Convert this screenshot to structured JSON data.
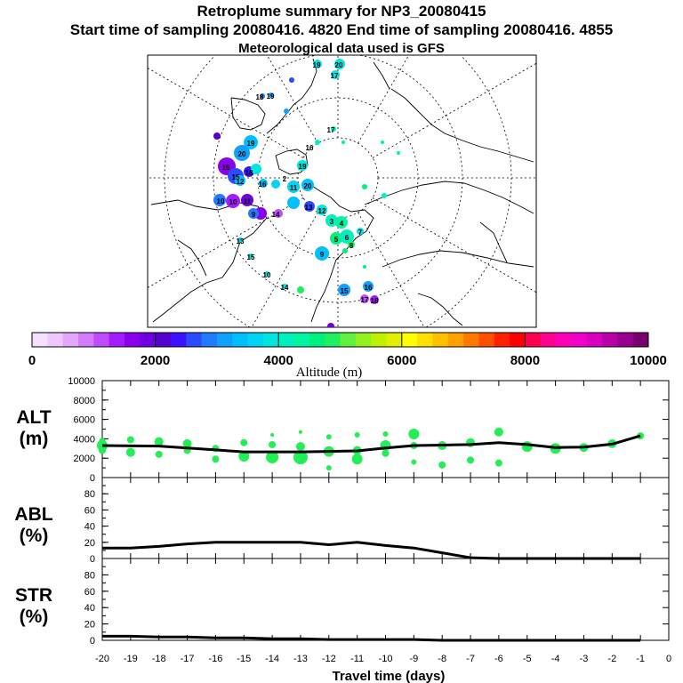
{
  "title": {
    "line1": "Retroplume summary for NP3_20080415",
    "line2": "Start time of sampling 20080416.  4820     End time of sampling 20080416.  4855",
    "line3": "Meteorological data used is GFS"
  },
  "colorbar": {
    "ticks": [
      "0",
      "2000",
      "4000",
      "6000",
      "8000",
      "10000"
    ],
    "label": "Altitude (m)",
    "colors": [
      "#f5e0ff",
      "#eec8ff",
      "#e2a6ff",
      "#d47cff",
      "#c04cff",
      "#a21cff",
      "#8a00ee",
      "#6d00dd",
      "#5600d0",
      "#3a10ff",
      "#2b4bff",
      "#1f7bff",
      "#12a0ff",
      "#00bfff",
      "#00d4f0",
      "#00e5e0",
      "#00f0c0",
      "#00f5a0",
      "#00f080",
      "#20f060",
      "#60f040",
      "#90f020",
      "#c0f000",
      "#e0f000",
      "#ffff00",
      "#ffe000",
      "#ffc000",
      "#ffa000",
      "#ff7800",
      "#ff5000",
      "#ff2000",
      "#ff0000",
      "#ff0050",
      "#ff0090",
      "#ff00b8",
      "#f000c8",
      "#d800c0",
      "#b800a8",
      "#980090",
      "#78006a"
    ]
  },
  "map": {
    "labels": [
      "19",
      "20",
      "17",
      "18",
      "19",
      "17",
      "19",
      "20",
      "19",
      "15",
      "18",
      "12",
      "16",
      "11",
      "10",
      "10",
      "9",
      "14",
      "13",
      "12",
      "11",
      "2",
      "3",
      "4",
      "5",
      "6",
      "7",
      "8",
      "9",
      "13",
      "15",
      "10",
      "14",
      "15",
      "16",
      "17",
      "18",
      "19",
      "20",
      "16"
    ]
  },
  "chart_data": [
    {
      "type": "scatter",
      "panel": "ALT",
      "ylabel_line1": "ALT",
      "ylabel_line2": "(m)",
      "ylim": [
        0,
        10000
      ],
      "yticks": [
        "0",
        "2000",
        "4000",
        "6000",
        "8000",
        "10000"
      ],
      "median_line": {
        "x": [
          -20,
          -18,
          -17,
          -16,
          -15,
          -14,
          -13,
          -12,
          -11,
          -10,
          -9,
          -8,
          -7,
          -6,
          -5,
          -4,
          -3,
          -2,
          -1
        ],
        "y": [
          3300,
          3250,
          3050,
          2850,
          2650,
          2650,
          2650,
          2700,
          2750,
          3050,
          3300,
          3350,
          3400,
          3600,
          3400,
          3100,
          3150,
          3450,
          4300
        ]
      },
      "points": {
        "x": [
          -20,
          -20,
          -20,
          -19,
          -19,
          -18,
          -18,
          -17,
          -17,
          -16,
          -16,
          -15,
          -15,
          -14,
          -14,
          -14,
          -13,
          -13,
          -13,
          -12,
          -12,
          -12,
          -11,
          -11,
          -11,
          -10,
          -10,
          -10,
          -9,
          -9,
          -9,
          -8,
          -8,
          -7,
          -7,
          -6,
          -6,
          -5,
          -4,
          -3,
          -2,
          -1
        ],
        "y": [
          3300,
          3700,
          2800,
          3900,
          2600,
          3700,
          2400,
          3500,
          2800,
          3000,
          1900,
          3600,
          2200,
          4400,
          3400,
          2100,
          4700,
          3200,
          2100,
          4200,
          2700,
          1000,
          4400,
          2800,
          1900,
          3300,
          2500,
          4500,
          4500,
          3300,
          1600,
          3300,
          1300,
          3600,
          1800,
          4700,
          1500,
          3200,
          3000,
          3100,
          3500,
          4300
        ],
        "size": [
          6,
          4,
          4,
          4,
          5,
          5,
          4,
          5,
          4,
          4,
          4,
          4,
          6,
          2,
          4,
          7,
          2,
          5,
          8,
          3,
          6,
          3,
          3,
          5,
          6,
          6,
          4,
          3,
          6,
          4,
          3,
          5,
          4,
          5,
          4,
          5,
          4,
          6,
          6,
          5,
          5,
          4
        ]
      }
    },
    {
      "type": "line",
      "panel": "ABL",
      "ylabel_line1": "ABL",
      "ylabel_line2": "(%)",
      "ylim": [
        0,
        100
      ],
      "yticks": [
        "0",
        "20",
        "40",
        "60",
        "80"
      ],
      "x": [
        -20,
        -19,
        -18,
        -17,
        -16,
        -15,
        -14,
        -13,
        -12,
        -11,
        -10,
        -9,
        -8,
        -7,
        -6,
        -5,
        -4,
        -3,
        -2,
        -1
      ],
      "y": [
        13,
        13,
        15,
        18,
        20,
        20,
        20,
        20,
        17,
        20,
        16,
        13,
        7,
        1,
        0,
        0,
        0,
        0,
        0,
        0
      ]
    },
    {
      "type": "line",
      "panel": "STR",
      "ylabel_line1": "STR",
      "ylabel_line2": "(%)",
      "ylim": [
        0,
        100
      ],
      "yticks": [
        "0",
        "20",
        "40",
        "60",
        "80"
      ],
      "x": [
        -20,
        -19,
        -18,
        -17,
        -16,
        -15,
        -14,
        -13,
        -12,
        -11,
        -10,
        -9,
        -8,
        -7,
        -6,
        -5,
        -4,
        -3,
        -2,
        -1
      ],
      "y": [
        5,
        5,
        4,
        4,
        3,
        3,
        2,
        2,
        1,
        1,
        1,
        1,
        0,
        0,
        0,
        0,
        0,
        0,
        0,
        0
      ]
    }
  ],
  "xaxis": {
    "ticks": [
      "-20",
      "-19",
      "-18",
      "-17",
      "-16",
      "-15",
      "-14",
      "-13",
      "-12",
      "-11",
      "-10",
      "-9",
      "-8",
      "-7",
      "-6",
      "-5",
      "-4",
      "-3",
      "-2",
      "-1",
      "0"
    ],
    "values": [
      -20,
      -19,
      -18,
      -17,
      -16,
      -15,
      -14,
      -13,
      -12,
      -11,
      -10,
      -9,
      -8,
      -7,
      -6,
      -5,
      -4,
      -3,
      -2,
      -1,
      0
    ],
    "label": "Travel time (days)"
  },
  "dot_color": "#22ee55",
  "line_color": "#000000"
}
